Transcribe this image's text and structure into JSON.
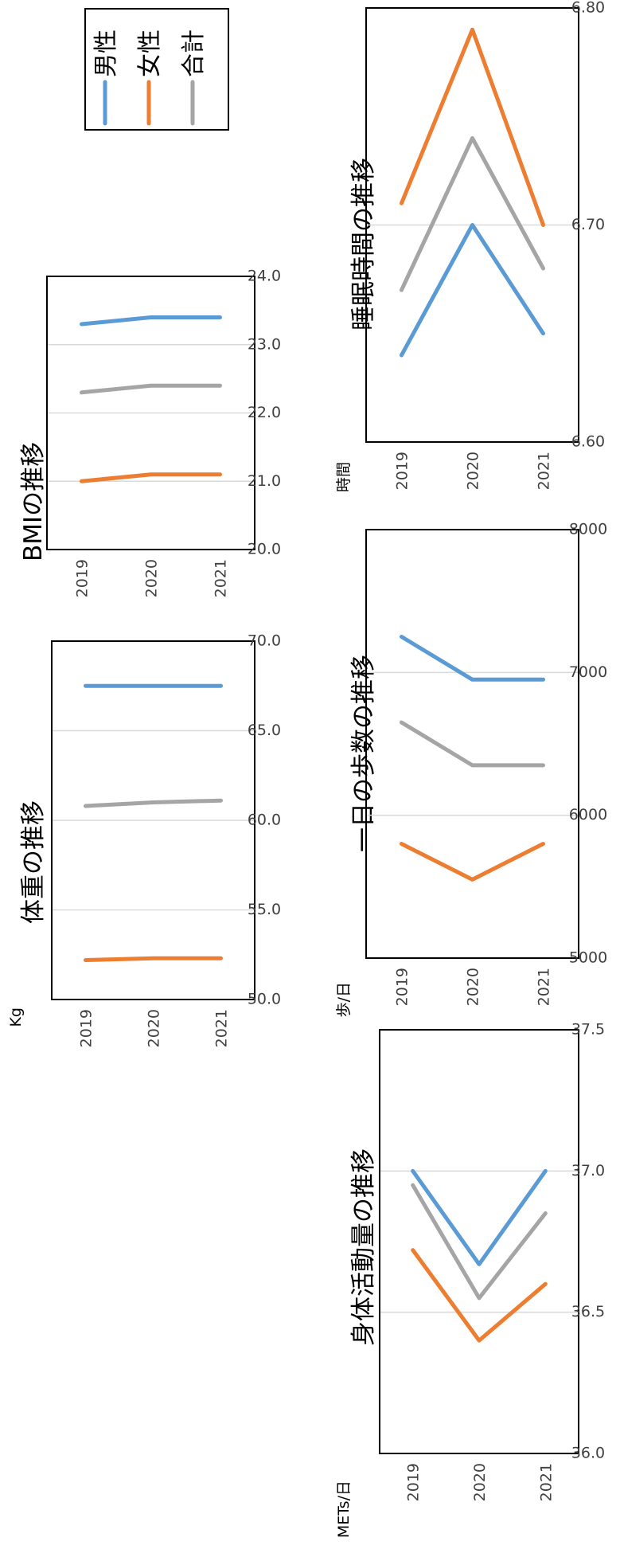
{
  "colors": {
    "male": "#5b9bd5",
    "female": "#ed7d31",
    "total": "#a5a5a5",
    "grid": "#d9d9d9"
  },
  "legend": {
    "placement": "top-right",
    "items": [
      "男性",
      "女性",
      "合計"
    ]
  },
  "chart_data": [
    {
      "type": "line",
      "title": "体重の推移",
      "unit": "Kg",
      "x": [
        "2019",
        "2020",
        "2021"
      ],
      "ylim": [
        50.0,
        70.0
      ],
      "yticks": [
        "70.0",
        "65.0",
        "60.0",
        "55.0",
        "50.0"
      ],
      "grid": true,
      "series": [
        {
          "name": "男性",
          "values": [
            67.5,
            67.5,
            67.5
          ]
        },
        {
          "name": "女性",
          "values": [
            52.2,
            52.3,
            52.3
          ]
        },
        {
          "name": "合計",
          "values": [
            60.8,
            61.0,
            61.1
          ]
        }
      ]
    },
    {
      "type": "line",
      "title": "BMIの推移",
      "unit": "",
      "x": [
        "2019",
        "2020",
        "2021"
      ],
      "ylim": [
        20.0,
        24.0
      ],
      "yticks": [
        "24.0",
        "23.0",
        "22.0",
        "21.0",
        "20.0"
      ],
      "grid": true,
      "series": [
        {
          "name": "男性",
          "values": [
            23.3,
            23.4,
            23.4
          ]
        },
        {
          "name": "女性",
          "values": [
            21.0,
            21.1,
            21.1
          ]
        },
        {
          "name": "合計",
          "values": [
            22.3,
            22.4,
            22.4
          ]
        }
      ]
    },
    {
      "type": "line",
      "title": "身体活動量の推移",
      "unit": "METs/日",
      "x": [
        "2019",
        "2020",
        "2021"
      ],
      "ylim": [
        36.0,
        37.5
      ],
      "yticks": [
        "37.5",
        "37.0",
        "36.5",
        "36.0"
      ],
      "grid": true,
      "series": [
        {
          "name": "男性",
          "values": [
            37.0,
            36.67,
            37.0
          ]
        },
        {
          "name": "女性",
          "values": [
            36.72,
            36.4,
            36.6
          ]
        },
        {
          "name": "合計",
          "values": [
            36.95,
            36.55,
            36.85
          ]
        }
      ]
    },
    {
      "type": "line",
      "title": "一日の歩数の推移",
      "unit": "歩/日",
      "x": [
        "2019",
        "2020",
        "2021"
      ],
      "ylim": [
        5000,
        8000
      ],
      "yticks": [
        "8000",
        "7000",
        "6000",
        "5000"
      ],
      "grid": true,
      "series": [
        {
          "name": "男性",
          "values": [
            7250,
            6950,
            6950
          ]
        },
        {
          "name": "女性",
          "values": [
            5800,
            5550,
            5800
          ]
        },
        {
          "name": "合計",
          "values": [
            6650,
            6350,
            6350
          ]
        }
      ]
    },
    {
      "type": "line",
      "title": "睡眠時間の推移",
      "unit": "時間",
      "x": [
        "2019",
        "2020",
        "2021"
      ],
      "ylim": [
        6.6,
        6.8
      ],
      "yticks": [
        "6.80",
        "6.70",
        "6.60"
      ],
      "grid": true,
      "series": [
        {
          "name": "男性",
          "values": [
            6.64,
            6.7,
            6.65
          ]
        },
        {
          "name": "女性",
          "values": [
            6.71,
            6.79,
            6.7
          ]
        },
        {
          "name": "合計",
          "values": [
            6.67,
            6.74,
            6.68
          ]
        }
      ]
    }
  ]
}
